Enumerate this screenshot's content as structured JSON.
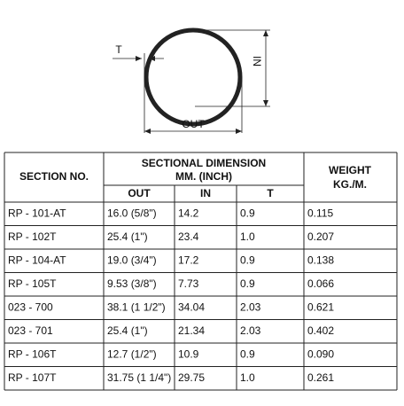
{
  "diagram": {
    "t_label": "T",
    "in_label": "IN",
    "out_label": "OUT"
  },
  "table": {
    "header": {
      "section": "SECTION NO.",
      "sectional_line1": "SECTIONAL DIMENSION",
      "sectional_line2": "MM. (INCH)",
      "weight_line1": "WEIGHT",
      "weight_line2": "KG./M.",
      "out": "OUT",
      "in": "IN",
      "t": "T"
    },
    "rows": [
      [
        "RP - 101-AT",
        "16.0 (5/8\")",
        "14.2",
        "0.9",
        "0.115"
      ],
      [
        "RP - 102T",
        "25.4 (1\")",
        "23.4",
        "1.0",
        "0.207"
      ],
      [
        "RP - 104-AT",
        "19.0 (3/4\")",
        "17.2",
        "0.9",
        "0.138"
      ],
      [
        "RP - 105T",
        "9.53 (3/8\")",
        "7.73",
        "0.9",
        "0.066"
      ],
      [
        "023 - 700",
        "38.1 (1 1/2\")",
        "34.04",
        "2.03",
        "0.621"
      ],
      [
        "023 - 701",
        "25.4 (1\")",
        "21.34",
        "2.03",
        "0.402"
      ],
      [
        "RP - 106T",
        "12.7 (1/2\")",
        "10.9",
        "0.9",
        "0.090"
      ],
      [
        "RP - 107T",
        "31.75 (1 1/4\")",
        "29.75",
        "1.0",
        "0.261"
      ]
    ]
  }
}
